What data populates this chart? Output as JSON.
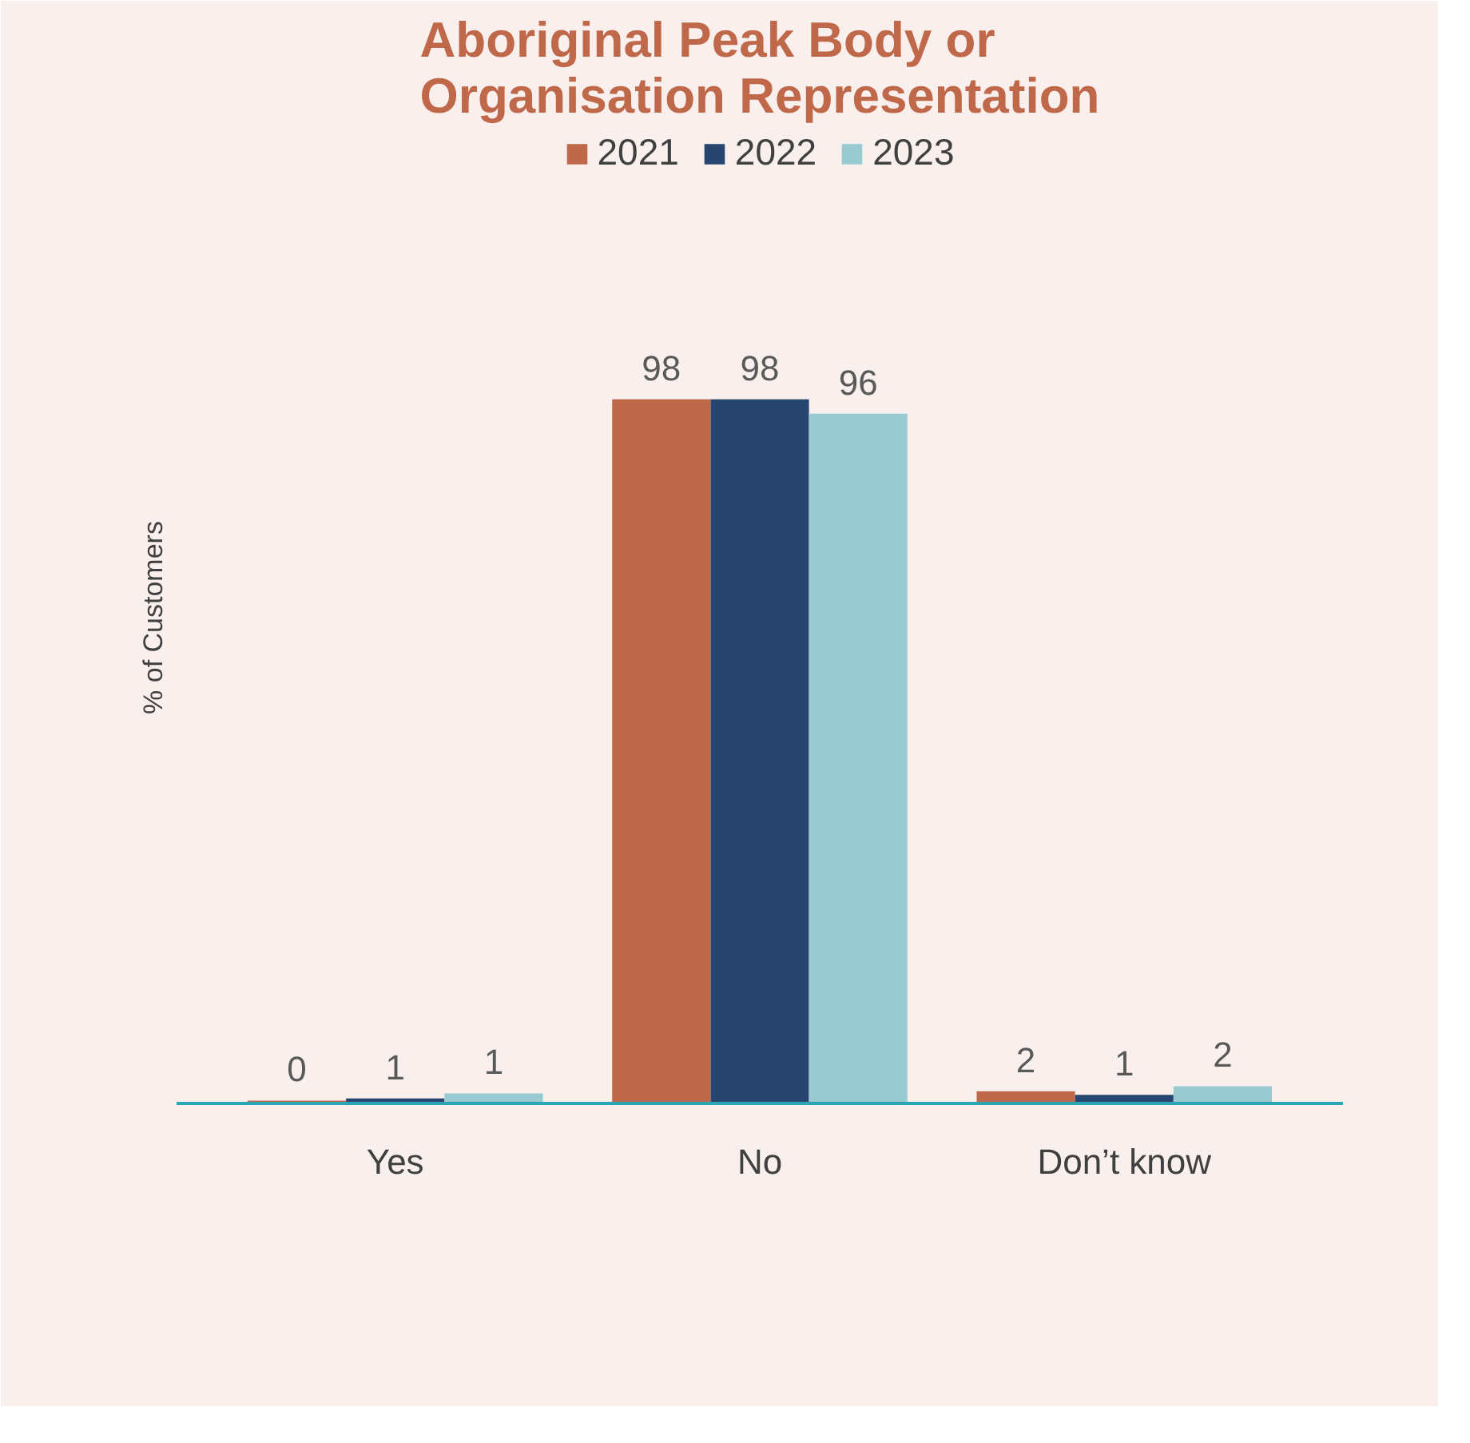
{
  "chart_data": {
    "type": "bar",
    "title": "Aboriginal Peak Body or Organisation Representation",
    "ylabel": "% of Customers",
    "categories": [
      "Yes",
      "No",
      "Don’t know"
    ],
    "series": [
      {
        "name": "2021",
        "color": "#c0694a",
        "values": [
          0.4,
          98,
          1.7
        ],
        "value_labels": [
          "0",
          "98",
          "2"
        ]
      },
      {
        "name": "2022",
        "color": "#284570",
        "values": [
          0.7,
          98,
          1.2
        ],
        "value_labels": [
          "1",
          "98",
          "1"
        ]
      },
      {
        "name": "2023",
        "color": "#97cad1",
        "values": [
          1.4,
          96,
          2.4
        ],
        "value_labels": [
          "1",
          "96",
          "2"
        ]
      }
    ],
    "legend": "top",
    "grid": false
  }
}
